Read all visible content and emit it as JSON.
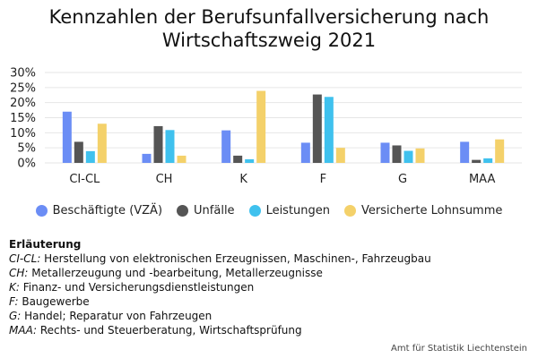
{
  "colors": {
    "series": [
      "#6b8df5",
      "#555555",
      "#3fc1ee",
      "#f4d16a"
    ],
    "grid": "#e6e6e6"
  },
  "chart_data": {
    "type": "bar",
    "title": [
      "Kennzahlen der Berufsunfallversicherung nach",
      "Wirtschaftszweig 2021"
    ],
    "categories": [
      "CI-CL",
      "CH",
      "K",
      "F",
      "G",
      "MAA"
    ],
    "series": [
      {
        "name": "Beschäftigte (VZÄ)",
        "values": [
          17.0,
          3.0,
          10.8,
          6.7,
          6.7,
          7.0
        ]
      },
      {
        "name": "Unfälle",
        "values": [
          7.0,
          12.2,
          2.4,
          22.7,
          5.8,
          1.0
        ]
      },
      {
        "name": "Leistungen",
        "values": [
          3.9,
          10.9,
          1.2,
          21.9,
          4.0,
          1.5
        ]
      },
      {
        "name": "Versicherte Lohnsumme",
        "values": [
          13.0,
          2.4,
          23.9,
          5.0,
          4.8,
          7.8
        ]
      }
    ],
    "ylim": [
      0,
      30
    ],
    "yticks": [
      "0%",
      "5%",
      "10%",
      "15%",
      "20%",
      "25%",
      "30%"
    ],
    "grid": true,
    "legend_position": "bottom"
  },
  "notes": {
    "heading": "Erläuterung",
    "items": [
      {
        "abbr": "CI-CL:",
        "text": "Herstellung von elektronischen Erzeugnissen, Maschinen-, Fahrzeugbau"
      },
      {
        "abbr": "CH:",
        "text": "Metallerzeugung und -bearbeitung, Metallerzeugnisse"
      },
      {
        "abbr": "K:",
        "text": "Finanz- und Versicherungsdienstleistungen"
      },
      {
        "abbr": "F:",
        "text": "Baugewerbe"
      },
      {
        "abbr": "G:",
        "text": "Handel; Reparatur von Fahrzeugen"
      },
      {
        "abbr": "MAA:",
        "text": "Rechts- und Steuerberatung, Wirtschaftsprüfung"
      }
    ]
  },
  "credit": "Amt für Statistik Liechtenstein"
}
